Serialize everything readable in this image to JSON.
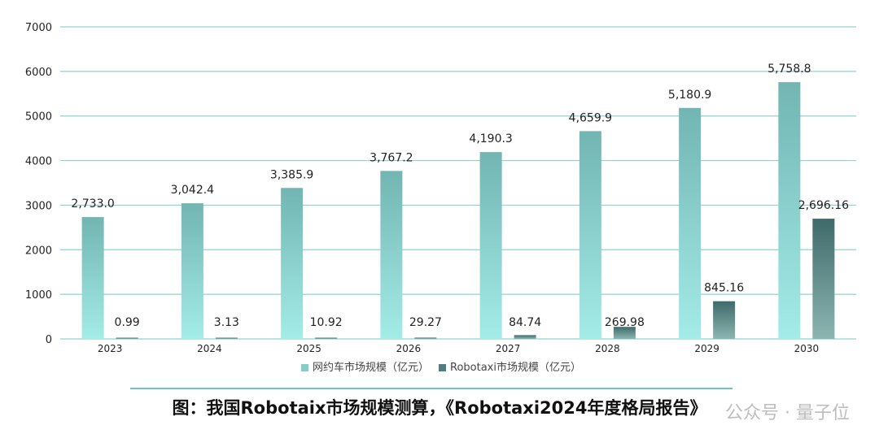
{
  "chart_data": {
    "type": "bar",
    "categories": [
      "2023",
      "2024",
      "2025",
      "2026",
      "2027",
      "2028",
      "2029",
      "2030"
    ],
    "series": [
      {
        "name": "网约车市场规模（亿元）",
        "values": [
          2733.0,
          3042.4,
          3385.9,
          3767.2,
          4190.3,
          4659.9,
          5180.9,
          5758.8
        ],
        "labels": [
          "2,733.0",
          "3,042.4",
          "3,385.9",
          "3,767.2",
          "4,190.3",
          "4,659.9",
          "5,180.9",
          "5,758.8"
        ]
      },
      {
        "name": "Robotaxi市场规模（亿元）",
        "values": [
          0.99,
          3.13,
          10.92,
          29.27,
          84.74,
          269.98,
          845.16,
          2696.16
        ],
        "labels": [
          "0.99",
          "3.13",
          "10.92",
          "29.27",
          "84.74",
          "269.98",
          "845.16",
          "2,696.16"
        ]
      }
    ],
    "yticks": [
      "0",
      "1000",
      "2000",
      "3000",
      "4000",
      "5000",
      "6000",
      "7000"
    ],
    "ylim": [
      0,
      7000
    ],
    "grid": true,
    "legend_position": "bottom"
  },
  "caption": "图：我国Robotaix市场规模测算，《Robotaxi2024年度格局报告》",
  "watermark": "公众号 · 量子位",
  "colors": {
    "series1_top": "#72b5b2",
    "series1_bottom": "#a4ece8",
    "series2_top": "#3f6a6a",
    "series2_bottom": "#8cb5b2",
    "grid": "#8fd3cf",
    "axis_text": "#222222"
  }
}
